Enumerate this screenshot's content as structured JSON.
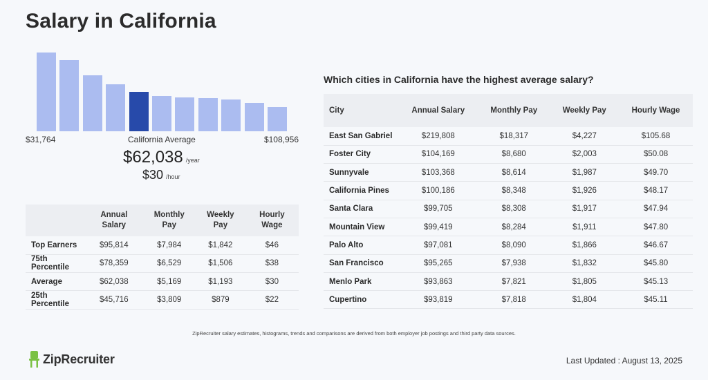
{
  "page": {
    "title": "Salary in California"
  },
  "histogram": {
    "min_label": "$31,764",
    "max_label": "$108,956",
    "center_label": "California Average",
    "highlight_index": 4,
    "bar_heights": [
      1.0,
      0.9,
      0.71,
      0.6,
      0.5,
      0.45,
      0.43,
      0.42,
      0.4,
      0.36,
      0.31
    ],
    "color_normal": "#abbcf0",
    "color_highlight": "#274aaa"
  },
  "average": {
    "annual": "$62,038",
    "annual_unit": "/year",
    "hourly": "$30",
    "hourly_unit": "/hour"
  },
  "percentile_table": {
    "headers": [
      "",
      "Annual Salary",
      "Monthly Pay",
      "Weekly Pay",
      "Hourly Wage"
    ],
    "rows": [
      [
        "Top Earners",
        "$95,814",
        "$7,984",
        "$1,842",
        "$46"
      ],
      [
        "75th Percentile",
        "$78,359",
        "$6,529",
        "$1,506",
        "$38"
      ],
      [
        "Average",
        "$62,038",
        "$5,169",
        "$1,193",
        "$30"
      ],
      [
        "25th Percentile",
        "$45,716",
        "$3,809",
        "$879",
        "$22"
      ]
    ]
  },
  "city_section": {
    "question": "Which cities in California have the highest average salary?",
    "headers": [
      "City",
      "Annual Salary",
      "Monthly Pay",
      "Weekly Pay",
      "Hourly Wage"
    ],
    "rows": [
      [
        "East San Gabriel",
        "$219,808",
        "$18,317",
        "$4,227",
        "$105.68"
      ],
      [
        "Foster City",
        "$104,169",
        "$8,680",
        "$2,003",
        "$50.08"
      ],
      [
        "Sunnyvale",
        "$103,368",
        "$8,614",
        "$1,987",
        "$49.70"
      ],
      [
        "California Pines",
        "$100,186",
        "$8,348",
        "$1,926",
        "$48.17"
      ],
      [
        "Santa Clara",
        "$99,705",
        "$8,308",
        "$1,917",
        "$47.94"
      ],
      [
        "Mountain View",
        "$99,419",
        "$8,284",
        "$1,911",
        "$47.80"
      ],
      [
        "Palo Alto",
        "$97,081",
        "$8,090",
        "$1,866",
        "$46.67"
      ],
      [
        "San Francisco",
        "$95,265",
        "$7,938",
        "$1,832",
        "$45.80"
      ],
      [
        "Menlo Park",
        "$93,863",
        "$7,821",
        "$1,805",
        "$45.13"
      ],
      [
        "Cupertino",
        "$93,819",
        "$7,818",
        "$1,804",
        "$45.11"
      ]
    ]
  },
  "footer": {
    "disclaimer": "ZipRecruiter salary estimates, histograms, trends and comparisons are derived from both employer job postings and third party data sources.",
    "logo_text": "ZipRecruiter",
    "logo_icon": "ziprecruiter-chair-icon",
    "logo_color": "#7ac143",
    "last_updated": "Last Updated : August 13, 2025"
  }
}
